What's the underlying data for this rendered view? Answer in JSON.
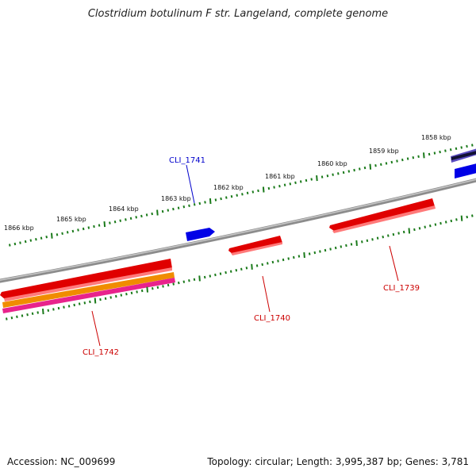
{
  "header": {
    "title": "Clostridium botulinum F str. Langeland, complete genome"
  },
  "footer": {
    "accession": "Accession: NC_009699",
    "summary": "Topology: circular; Length: 3,995,387 bp; Genes: 3,781"
  },
  "colors": {
    "backbone": "#8c8c8c",
    "tick": "#1a7a1a",
    "gene_red": "#e00000",
    "gene_blue": "#0000e6",
    "gene_orange": "#f08c00",
    "gene_magenta": "#e8238c",
    "label_red": "#cc0000",
    "label_blue": "#0000cc"
  },
  "scale": {
    "ticks": [
      {
        "label": "1858 kbp"
      },
      {
        "label": "1859 kbp"
      },
      {
        "label": "1860 kbp"
      },
      {
        "label": "1861 kbp"
      },
      {
        "label": "1862 kbp"
      },
      {
        "label": "1863 kbp"
      },
      {
        "label": "1864 kbp"
      },
      {
        "label": "1865 kbp"
      },
      {
        "label": "1866 kbp"
      }
    ]
  },
  "genes": [
    {
      "label": "CLI_1741",
      "color": "#0000e6",
      "label_color": "#0000cc"
    },
    {
      "label": "CLI_1740",
      "color": "#e00000",
      "label_color": "#cc0000"
    },
    {
      "label": "CLI_1739",
      "color": "#e00000",
      "label_color": "#cc0000"
    },
    {
      "label": "CLI_1742",
      "color": "#e00000",
      "label_color": "#cc0000"
    }
  ]
}
